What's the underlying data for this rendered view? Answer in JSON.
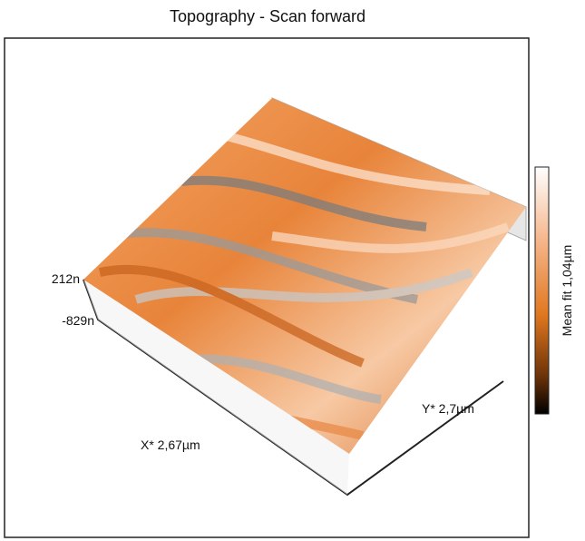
{
  "title": "Topography - Scan forward",
  "z_axis": {
    "top_label": "212n",
    "bottom_label": "-829n"
  },
  "x_axis": {
    "label": "X* 2,67µm"
  },
  "y_axis": {
    "label": "Y* 2,7µm"
  },
  "colorbar": {
    "label": "Mean fit 1,04µm"
  }
}
